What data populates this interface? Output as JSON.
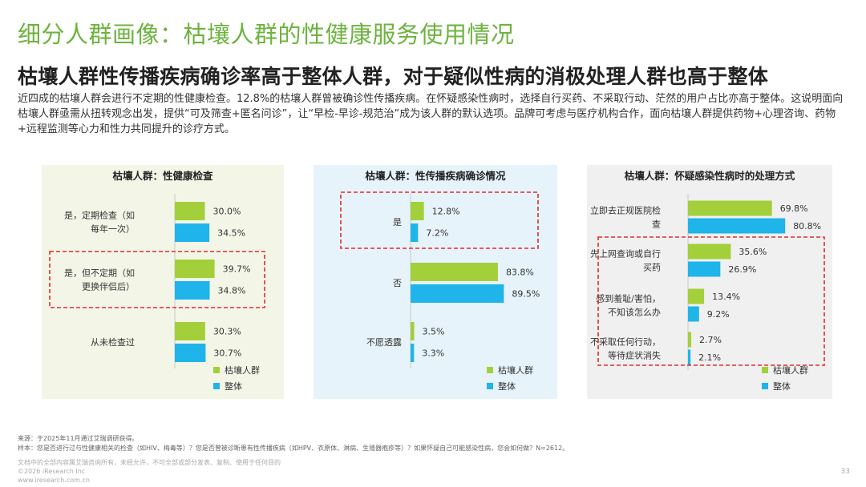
{
  "title": "细分人群画像：枯壤人群的性健康服务使用情况",
  "subtitle": "枯壤人群性传播疾病确诊率高于整体人群，对于疑似性病的消极处理人群也高于整体",
  "description": "近四成的枯壤人群会进行不定期的性健康检查。12.8%的枯壤人群曾被确诊性传播疾病。在怀疑感染性病时，选择自行买药、不采取行动、茫然的用户占比亦高于整体。这说明面向枯壤人群亟需从扭转观念出发，提供“可及筛查+匿名问诊”，让“早检-早诊-规范治”成为该人群的默认选项。品牌可考虑与医疗机构合作，面向枯壤人群提供药物+心理咨询、药物+远程监测等心力和性力共同提升的诊疗方式。",
  "colors": {
    "green": "#a3cf3a",
    "blue": "#1fb4ea",
    "highlight": "#e02b2b",
    "panel1_bg": "#f3f6e7",
    "panel2_bg": "#e6f3fa",
    "panel3_bg": "#f0f0f0"
  },
  "chart_data": [
    {
      "type": "bar",
      "orientation": "horizontal",
      "title": "枯壤人群：性健康检查",
      "categories": [
        "是，定期检查（如每年一次）",
        "是，但不定期（如更换伴侣后）",
        "从未检查过"
      ],
      "category_lines": [
        [
          "是，定期检查（如",
          "每年一次）"
        ],
        [
          "是，但不定期（如",
          "更换伴侣后）"
        ],
        [
          "从未检查过"
        ]
      ],
      "series": [
        {
          "name": "枯壤人群",
          "values": [
            30.0,
            39.7,
            30.3
          ],
          "labels": [
            "30.0%",
            "39.7%",
            "30.3%"
          ]
        },
        {
          "name": "整体",
          "values": [
            34.5,
            34.8,
            30.7
          ],
          "labels": [
            "34.5%",
            "34.8%",
            "30.7%"
          ]
        }
      ],
      "highlighted_category": 1,
      "xlim": [
        0,
        100
      ],
      "legend": "bottom-right"
    },
    {
      "type": "bar",
      "orientation": "horizontal",
      "title": "枯壤人群：性传播疾病确诊情况",
      "categories": [
        "是",
        "否",
        "不愿透露"
      ],
      "category_lines": [
        [
          "是"
        ],
        [
          "否"
        ],
        [
          "不愿透露"
        ]
      ],
      "series": [
        {
          "name": "枯壤人群",
          "values": [
            12.8,
            83.8,
            3.5
          ],
          "labels": [
            "12.8%",
            "83.8%",
            "3.5%"
          ]
        },
        {
          "name": "整体",
          "values": [
            7.2,
            89.5,
            3.3
          ],
          "labels": [
            "7.2%",
            "89.5%",
            "3.3%"
          ]
        }
      ],
      "highlighted_category": 0,
      "xlim": [
        0,
        100
      ],
      "legend": "bottom-right"
    },
    {
      "type": "bar",
      "orientation": "horizontal",
      "title": "枯壤人群：怀疑感染性病时的处理方式",
      "categories": [
        "立即去正规医院检查",
        "先上网查询或自行买药",
        "感到羞耻/害怕，不知该怎么办",
        "不采取任何行动，等待症状消失"
      ],
      "category_lines": [
        [
          "立即去正规医院检",
          "查"
        ],
        [
          "先上网查询或自行",
          "买药"
        ],
        [
          "感到羞耻/害怕，",
          "不知该怎么办"
        ],
        [
          "不采取任何行动，",
          "等待症状消失"
        ]
      ],
      "series": [
        {
          "name": "枯壤人群",
          "values": [
            69.8,
            35.6,
            13.4,
            2.7
          ],
          "labels": [
            "69.8%",
            "35.6%",
            "13.4%",
            "2.7%"
          ]
        },
        {
          "name": "整体",
          "values": [
            80.8,
            26.9,
            9.2,
            2.1
          ],
          "labels": [
            "80.8%",
            "26.9%",
            "9.2%",
            "2.1%"
          ]
        }
      ],
      "highlighted_range": [
        1,
        3
      ],
      "xlim": [
        0,
        100
      ],
      "legend": "bottom-right"
    }
  ],
  "footer": {
    "source": "来源：于2025年11月通过艾瑞调研获得。",
    "sample": "样本：您是否进行过与性健康相关的检查（如HIV、梅毒等）？您是否曾被诊断患有性传播疾病（如HPV、衣原体、淋病、生殖器疱疹等）？如果怀疑自己可能感染性病，您会如何做？N=2612。",
    "disclaimer": "文档中的全部内容属艾瑞咨询所有，未经允许，不可全部或部分发表、复制、使用于任何目的",
    "copyright": "©2026 iResearch Inc",
    "website": "www.iresearch.com.cn",
    "page_number": "33"
  }
}
